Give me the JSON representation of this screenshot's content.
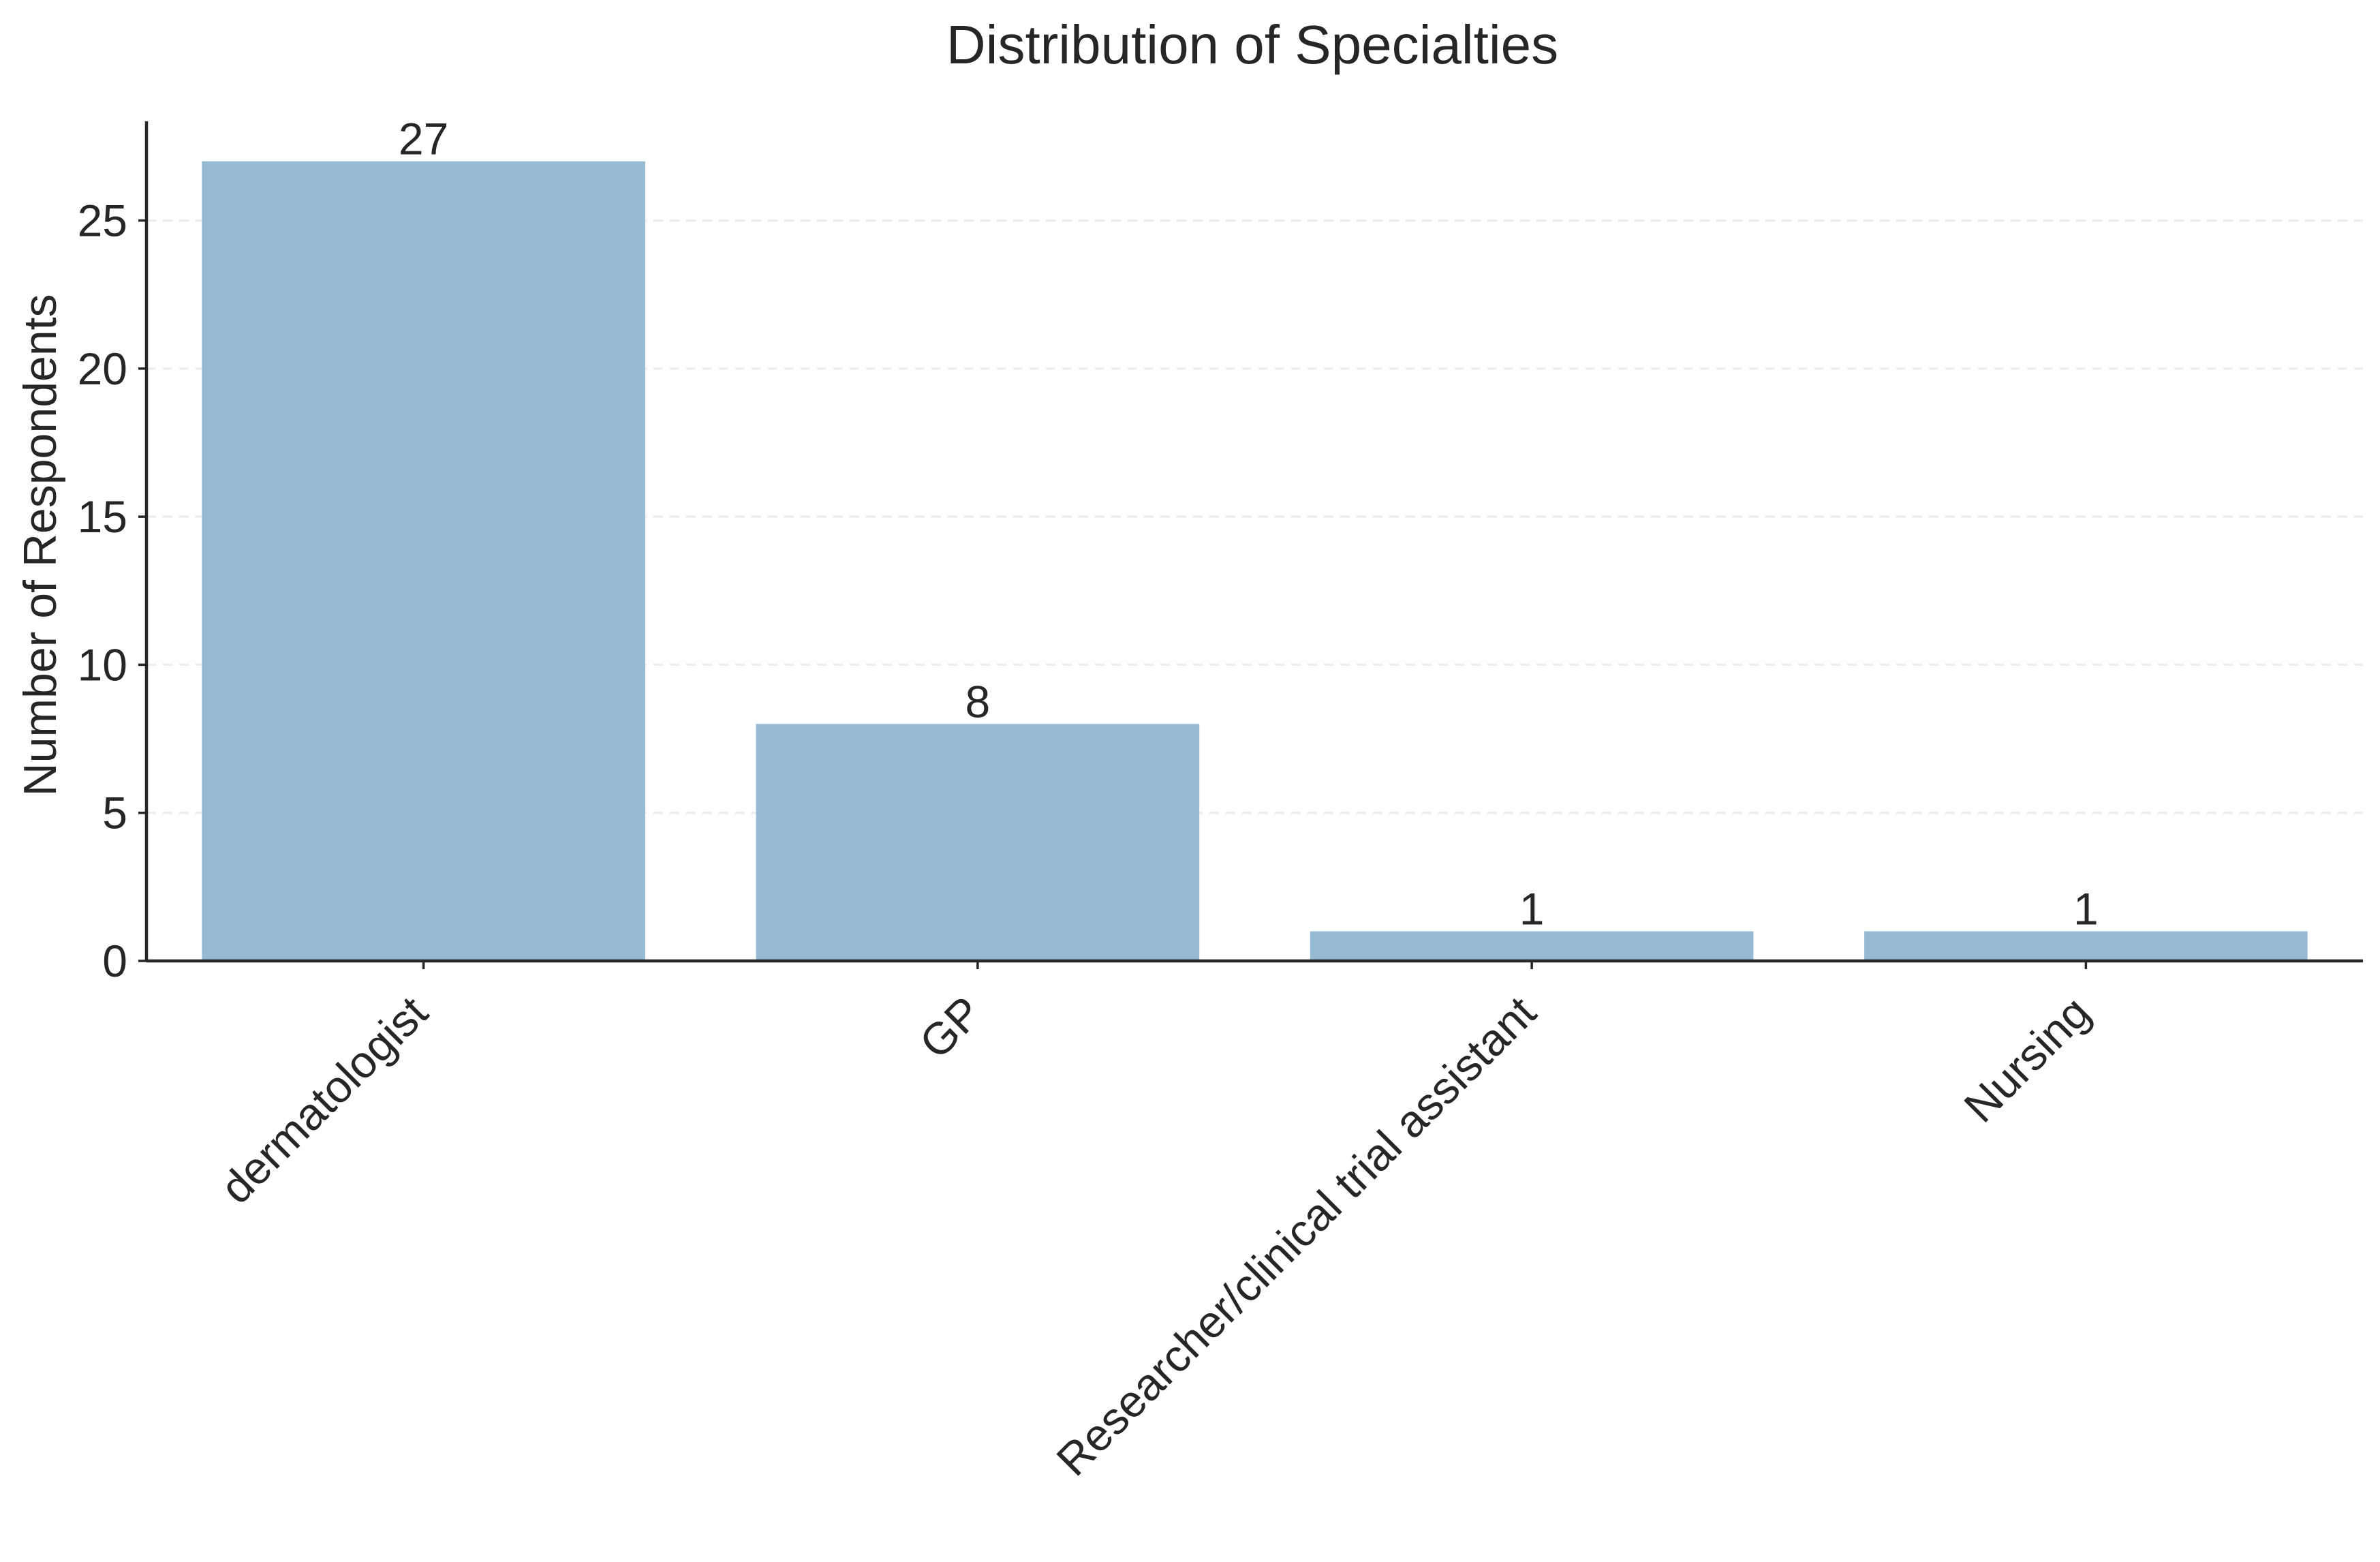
{
  "chart_data": {
    "type": "bar",
    "title": "Distribution of Specialties",
    "xlabel": "",
    "ylabel": "Number of Respondents",
    "categories": [
      "dermatologist",
      "GP",
      "Researcher/clinical trial assistant",
      "Nursing"
    ],
    "values": [
      27,
      8,
      1,
      1
    ],
    "data_labels": [
      "27",
      "8",
      "1",
      "1"
    ],
    "ylim": [
      0,
      28.35
    ],
    "yticks": [
      0,
      5,
      10,
      15,
      20,
      25
    ],
    "ytick_labels": [
      "0",
      "5",
      "10",
      "15",
      "20",
      "25"
    ],
    "bar_color": "#94bbd3",
    "grid": "y, dashed",
    "xtick_rotation": 45
  }
}
